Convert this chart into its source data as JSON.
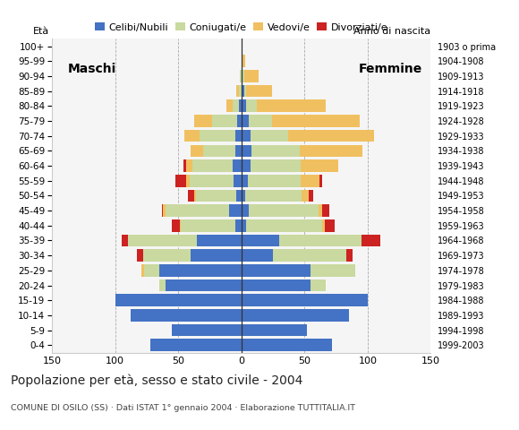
{
  "age_groups": [
    "0-4",
    "5-9",
    "10-14",
    "15-19",
    "20-24",
    "25-29",
    "30-34",
    "35-39",
    "40-44",
    "45-49",
    "50-54",
    "55-59",
    "60-64",
    "65-69",
    "70-74",
    "75-79",
    "80-84",
    "85-89",
    "90-94",
    "95-99",
    "100+"
  ],
  "anno_nascita": [
    "1999-2003",
    "1994-1998",
    "1989-1993",
    "1984-1988",
    "1979-1983",
    "1974-1978",
    "1969-1973",
    "1964-1968",
    "1959-1963",
    "1954-1958",
    "1949-1953",
    "1944-1948",
    "1939-1943",
    "1934-1938",
    "1929-1933",
    "1924-1928",
    "1919-1923",
    "1914-1918",
    "1909-1913",
    "1904-1908",
    "1903 o prima"
  ],
  "maschi_celibi": [
    72,
    55,
    88,
    100,
    60,
    65,
    40,
    35,
    5,
    10,
    4,
    6,
    7,
    5,
    5,
    3,
    2,
    0,
    0,
    0,
    0
  ],
  "maschi_coniugati": [
    0,
    0,
    0,
    0,
    5,
    12,
    38,
    55,
    43,
    50,
    32,
    35,
    32,
    25,
    28,
    20,
    5,
    2,
    1,
    0,
    0
  ],
  "maschi_vedovi": [
    0,
    0,
    0,
    0,
    0,
    2,
    0,
    0,
    1,
    2,
    1,
    3,
    5,
    10,
    12,
    14,
    5,
    2,
    0,
    0,
    0
  ],
  "maschi_divorziati": [
    0,
    0,
    0,
    0,
    0,
    0,
    5,
    5,
    6,
    1,
    5,
    8,
    2,
    0,
    0,
    0,
    0,
    0,
    0,
    0,
    0
  ],
  "femmine_celibi": [
    72,
    52,
    85,
    100,
    55,
    55,
    25,
    30,
    4,
    6,
    3,
    5,
    7,
    8,
    7,
    6,
    4,
    2,
    1,
    0,
    0
  ],
  "femmine_coniugati": [
    0,
    0,
    0,
    0,
    12,
    35,
    58,
    65,
    60,
    55,
    45,
    42,
    40,
    38,
    30,
    18,
    8,
    2,
    1,
    0,
    0
  ],
  "femmine_vedovi": [
    0,
    0,
    0,
    0,
    0,
    0,
    0,
    0,
    2,
    3,
    5,
    15,
    30,
    50,
    68,
    70,
    55,
    20,
    12,
    3,
    0
  ],
  "femmine_divorziati": [
    0,
    0,
    0,
    0,
    0,
    0,
    5,
    15,
    8,
    6,
    4,
    2,
    0,
    0,
    0,
    0,
    0,
    0,
    0,
    0,
    0
  ],
  "colors_celibi": "#4472c4",
  "colors_coniugati": "#c9d9a0",
  "colors_vedovi": "#f0c060",
  "colors_divorziati": "#cc2222",
  "xlim": 150,
  "title": "Popolazione per età, sesso e stato civile - 2004",
  "subtitle": "COMUNE DI OSILO (SS) · Dati ISTAT 1° gennaio 2004 · Elaborazione TUTTITALIA.IT",
  "label_maschi": "Maschi",
  "label_femmine": "Femmine",
  "ylabel_left": "Età",
  "ylabel_right": "Anno di nascita",
  "legend_labels": [
    "Celibi/Nubili",
    "Coniugati/e",
    "Vedovi/e",
    "Divorziati/e"
  ],
  "bg_color": "#ffffff",
  "plot_bg": "#f5f5f5"
}
